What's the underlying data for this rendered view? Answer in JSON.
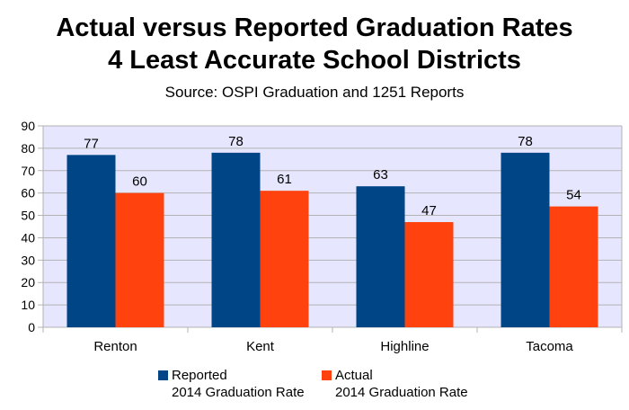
{
  "chart_data": {
    "type": "bar",
    "title_line1": "Actual versus Reported Graduation Rates",
    "title_line2": "4 Least Accurate School Districts",
    "subtitle": "Source: OSPI Graduation and 1251 Reports",
    "categories": [
      "Renton",
      "Kent",
      "Highline",
      "Tacoma"
    ],
    "series": [
      {
        "name_line1": "Reported",
        "name_line2": "2014 Graduation Rate",
        "color": "#004586",
        "values": [
          77,
          78,
          63,
          78
        ]
      },
      {
        "name_line1": "Actual",
        "name_line2": "2014 Graduation Rate",
        "color": "#ff420e",
        "values": [
          60,
          61,
          47,
          54
        ]
      }
    ],
    "ylim": [
      0,
      90
    ],
    "yticks": [
      0,
      10,
      20,
      30,
      40,
      50,
      60,
      70,
      80,
      90
    ],
    "grid": true,
    "plot_background": "#e6e6ff",
    "legend_position": "bottom"
  }
}
